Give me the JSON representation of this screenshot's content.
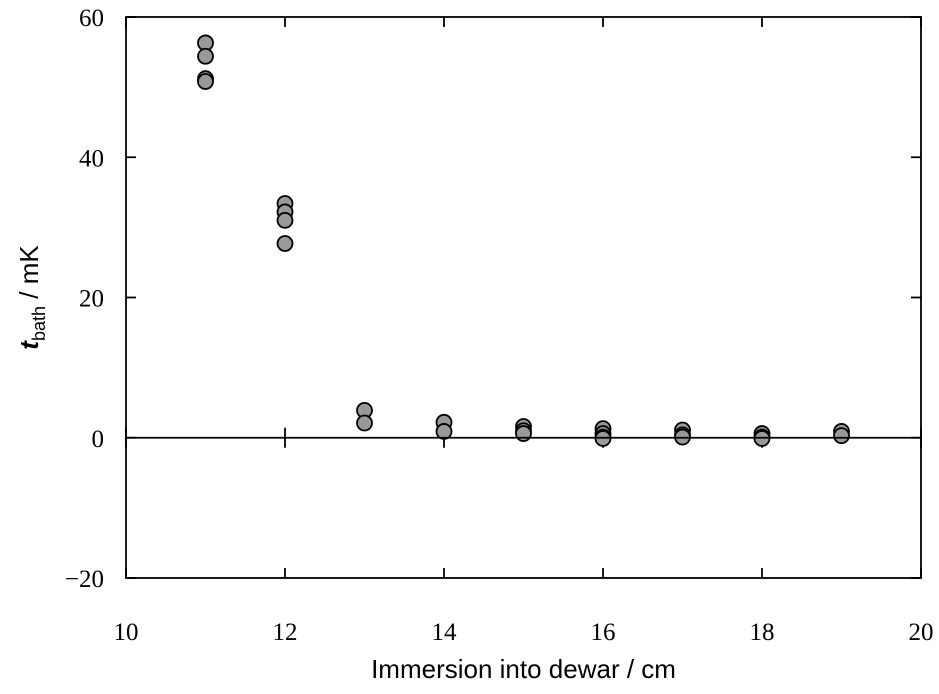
{
  "chart_data": {
    "type": "scatter",
    "title": "",
    "xlabel": "Immersion into dewar / cm",
    "ylabel": {
      "symbol": "t",
      "subscript": "bath",
      "unit": " / mK"
    },
    "xlim": [
      10,
      20
    ],
    "ylim": [
      -20,
      60
    ],
    "x_ticks": [
      {
        "value": 10,
        "label": "10"
      },
      {
        "value": 12,
        "label": "12"
      },
      {
        "value": 14,
        "label": "14"
      },
      {
        "value": 16,
        "label": "16"
      },
      {
        "value": 18,
        "label": "18"
      },
      {
        "value": 20,
        "label": "20"
      }
    ],
    "y_ticks": [
      {
        "value": -20,
        "label": "−20"
      },
      {
        "value": 0,
        "label": "0"
      },
      {
        "value": 20,
        "label": "20"
      },
      {
        "value": 40,
        "label": "40"
      },
      {
        "value": 60,
        "label": "60"
      }
    ],
    "zero_line": true,
    "grid": false,
    "legend": "none",
    "marker_color": "#999999",
    "series": [
      {
        "points": [
          {
            "x": 11,
            "y": 56.3
          },
          {
            "x": 11,
            "y": 54.4
          },
          {
            "x": 11,
            "y": 51.2
          },
          {
            "x": 11,
            "y": 50.8
          },
          {
            "x": 12,
            "y": 33.4
          },
          {
            "x": 12,
            "y": 32.2
          },
          {
            "x": 12,
            "y": 31.0
          },
          {
            "x": 12,
            "y": 27.7
          },
          {
            "x": 13,
            "y": 3.9
          },
          {
            "x": 13,
            "y": 2.1
          },
          {
            "x": 14,
            "y": 2.2
          },
          {
            "x": 14,
            "y": 0.9
          },
          {
            "x": 15,
            "y": 1.6
          },
          {
            "x": 15,
            "y": 1.0
          },
          {
            "x": 15,
            "y": 0.6
          },
          {
            "x": 16,
            "y": 1.3
          },
          {
            "x": 16,
            "y": 0.6
          },
          {
            "x": 16,
            "y": 0.1
          },
          {
            "x": 16,
            "y": -0.1
          },
          {
            "x": 17,
            "y": 1.1
          },
          {
            "x": 17,
            "y": 0.4
          },
          {
            "x": 17,
            "y": 0.1
          },
          {
            "x": 18,
            "y": 0.6
          },
          {
            "x": 18,
            "y": 0.1
          },
          {
            "x": 18,
            "y": -0.1
          },
          {
            "x": 19,
            "y": 0.9
          },
          {
            "x": 19,
            "y": 0.3
          }
        ]
      }
    ]
  }
}
